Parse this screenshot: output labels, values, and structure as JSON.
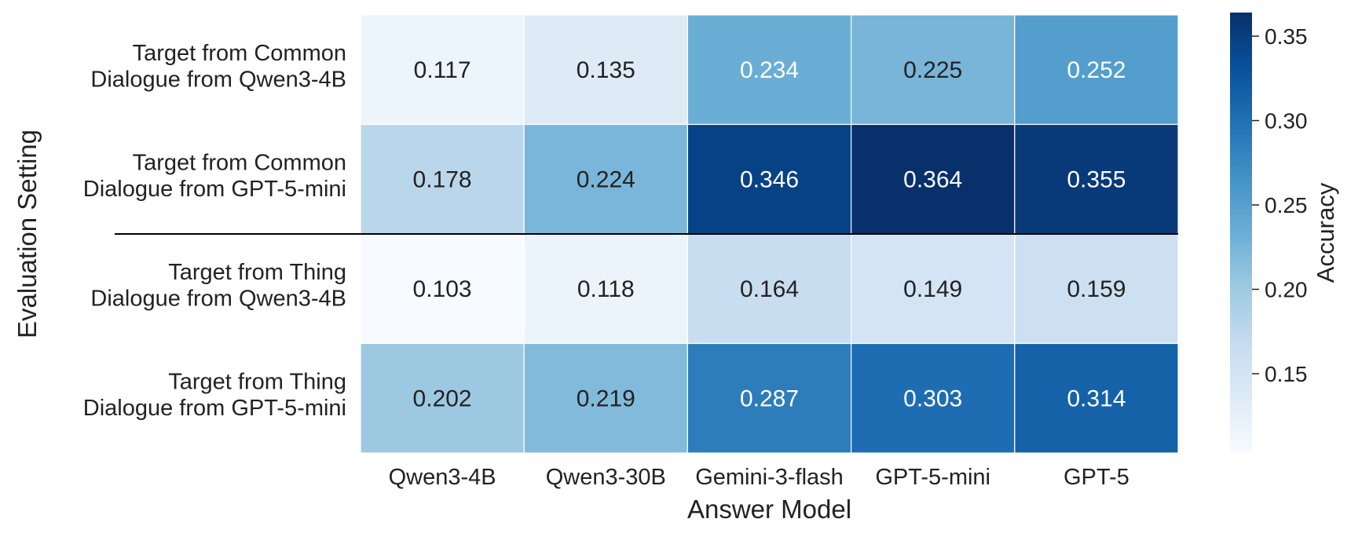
{
  "chart_data": {
    "type": "heatmap",
    "title": "",
    "xlabel": "Answer Model",
    "ylabel": "Evaluation Setting",
    "x_categories": [
      "Qwen3-4B",
      "Qwen3-30B",
      "Gemini-3-flash",
      "GPT-5-mini",
      "GPT-5"
    ],
    "y_categories": [
      [
        "Target from Common",
        "Dialogue from Qwen3-4B"
      ],
      [
        "Target from Common",
        "Dialogue from GPT-5-mini"
      ],
      [
        "Target from Thing",
        "Dialogue from Qwen3-4B"
      ],
      [
        "Target from Thing",
        "Dialogue from GPT-5-mini"
      ]
    ],
    "values": [
      [
        0.117,
        0.135,
        0.234,
        0.225,
        0.252
      ],
      [
        0.178,
        0.224,
        0.346,
        0.364,
        0.355
      ],
      [
        0.103,
        0.118,
        0.164,
        0.149,
        0.159
      ],
      [
        0.202,
        0.219,
        0.287,
        0.303,
        0.314
      ]
    ],
    "value_labels": [
      [
        "0.117",
        "0.135",
        "0.234",
        "0.225",
        "0.252"
      ],
      [
        "0.178",
        "0.224",
        "0.346",
        "0.364",
        "0.355"
      ],
      [
        "0.103",
        "0.118",
        "0.164",
        "0.149",
        "0.159"
      ],
      [
        "0.202",
        "0.219",
        "0.287",
        "0.303",
        "0.314"
      ]
    ],
    "colormap": "Blues",
    "colorbar": {
      "label": "Accuracy",
      "vmin": 0.103,
      "vmax": 0.364,
      "ticks": [
        0.15,
        0.2,
        0.25,
        0.3,
        0.35
      ],
      "tick_labels": [
        "0.15",
        "0.20",
        "0.25",
        "0.30",
        "0.35"
      ]
    },
    "separator_after_row": 1,
    "grid": false
  }
}
